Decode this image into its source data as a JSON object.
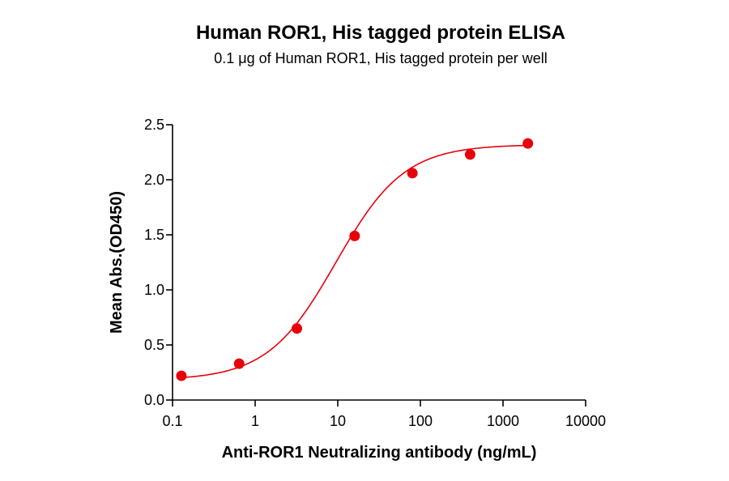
{
  "chart_data": {
    "type": "scatter",
    "title": "Human ROR1, His tagged protein ELISA",
    "subtitle": "0.1 μg of Human ROR1, His tagged protein per well",
    "xlabel": "Anti-ROR1 Neutralizing antibody (ng/mL)",
    "ylabel": "Mean Abs.(OD450)",
    "x_scale": "log",
    "xlim": [
      0.1,
      10000
    ],
    "ylim": [
      0,
      2.5
    ],
    "x_ticks": [
      0.1,
      1,
      10,
      100,
      1000,
      10000
    ],
    "x_tick_labels": [
      "0.1",
      "1",
      "10",
      "100",
      "1000",
      "10000"
    ],
    "y_ticks": [
      0,
      0.5,
      1.0,
      1.5,
      2.0,
      2.5
    ],
    "y_tick_labels": [
      "0.0",
      "0.5",
      "1.0",
      "1.5",
      "2.0",
      "2.5"
    ],
    "grid": false,
    "legend": "none",
    "series": [
      {
        "x": [
          0.128,
          0.64,
          3.2,
          16,
          80,
          400,
          2000
        ],
        "y": [
          0.22,
          0.33,
          0.65,
          1.49,
          2.06,
          2.23,
          2.33
        ],
        "color": "#e8000b",
        "fit": "4PL sigmoid curve"
      }
    ]
  }
}
